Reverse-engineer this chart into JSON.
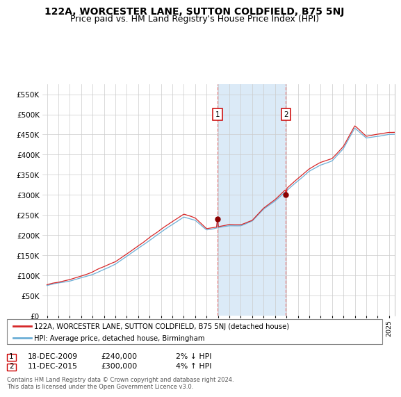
{
  "title": "122A, WORCESTER LANE, SUTTON COLDFIELD, B75 5NJ",
  "subtitle": "Price paid vs. HM Land Registry's House Price Index (HPI)",
  "legend_line1": "122A, WORCESTER LANE, SUTTON COLDFIELD, B75 5NJ (detached house)",
  "legend_line2": "HPI: Average price, detached house, Birmingham",
  "annotation1_date": "18-DEC-2009",
  "annotation1_price": "£240,000",
  "annotation1_hpi": "2% ↓ HPI",
  "annotation2_date": "11-DEC-2015",
  "annotation2_price": "£300,000",
  "annotation2_hpi": "4% ↑ HPI",
  "footnote": "Contains HM Land Registry data © Crown copyright and database right 2024.\nThis data is licensed under the Open Government Licence v3.0.",
  "hpi_color": "#6baed6",
  "price_color": "#d62728",
  "marker_color": "#8b0000",
  "annotation_box_color": "#cc0000",
  "shade_color": "#dbeaf7",
  "dashed_line_color": "#e88080",
  "ylim": [
    0,
    575000
  ],
  "yticks": [
    0,
    50000,
    100000,
    150000,
    200000,
    250000,
    300000,
    350000,
    400000,
    450000,
    500000,
    550000
  ],
  "ytick_labels": [
    "£0",
    "£50K",
    "£100K",
    "£150K",
    "£200K",
    "£250K",
    "£300K",
    "£350K",
    "£400K",
    "£450K",
    "£500K",
    "£550K"
  ],
  "sale1_year": 2009.958,
  "sale1_price": 240000,
  "sale2_year": 2015.958,
  "sale2_price": 300000,
  "bg_color": "#ffffff",
  "grid_color": "#cccccc",
  "title_fontsize": 10,
  "subtitle_fontsize": 9
}
